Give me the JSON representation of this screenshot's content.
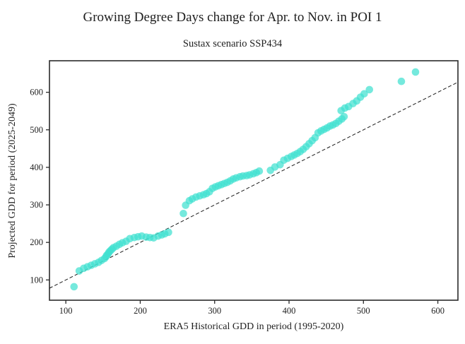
{
  "chart_data": {
    "type": "scatter",
    "title": "Growing Degree Days change for Apr. to Nov. in POI 1",
    "subtitle": "Sustax scenario SSP434",
    "xlabel": "ERA5 Historical GDD in period (1995-2020)",
    "ylabel": "Projected GDD for period (2025-2049)",
    "xlim": [
      78,
      627
    ],
    "ylim": [
      46,
      684
    ],
    "x_ticks": [
      100,
      200,
      300,
      400,
      500,
      600
    ],
    "y_ticks": [
      100,
      200,
      300,
      400,
      500,
      600
    ],
    "grid": false,
    "legend_visible": false,
    "marker": {
      "shape": "circle",
      "color": "#40E0D0",
      "opacity": 0.72,
      "radius": 5.3
    },
    "identity_line": {
      "equation": "y = x",
      "style": "dashed",
      "color": "#1a1a1a",
      "from": [
        78,
        78
      ],
      "to": [
        627,
        627
      ]
    },
    "points": [
      [
        111,
        82
      ],
      [
        118,
        124
      ],
      [
        124,
        131
      ],
      [
        129,
        135
      ],
      [
        134,
        139
      ],
      [
        139,
        143
      ],
      [
        144,
        147
      ],
      [
        148,
        152
      ],
      [
        152,
        157
      ],
      [
        154,
        162
      ],
      [
        155,
        166
      ],
      [
        157,
        170
      ],
      [
        158,
        174
      ],
      [
        160,
        178
      ],
      [
        162,
        182
      ],
      [
        164,
        186
      ],
      [
        168,
        190
      ],
      [
        172,
        195
      ],
      [
        176,
        199
      ],
      [
        181,
        203
      ],
      [
        186,
        210
      ],
      [
        192,
        213
      ],
      [
        197,
        215
      ],
      [
        202,
        217
      ],
      [
        208,
        214
      ],
      [
        213,
        213
      ],
      [
        218,
        212
      ],
      [
        224,
        217
      ],
      [
        229,
        220
      ],
      [
        233,
        223
      ],
      [
        238,
        227
      ],
      [
        258,
        277
      ],
      [
        261,
        299
      ],
      [
        266,
        311
      ],
      [
        270,
        316
      ],
      [
        275,
        321
      ],
      [
        280,
        324
      ],
      [
        285,
        327
      ],
      [
        289,
        330
      ],
      [
        293,
        335
      ],
      [
        297,
        344
      ],
      [
        301,
        348
      ],
      [
        305,
        351
      ],
      [
        309,
        354
      ],
      [
        313,
        357
      ],
      [
        317,
        360
      ],
      [
        321,
        364
      ],
      [
        325,
        369
      ],
      [
        329,
        372
      ],
      [
        334,
        375
      ],
      [
        338,
        377
      ],
      [
        343,
        378
      ],
      [
        347,
        380
      ],
      [
        352,
        383
      ],
      [
        356,
        386
      ],
      [
        360,
        390
      ],
      [
        375,
        392
      ],
      [
        381,
        401
      ],
      [
        388,
        407
      ],
      [
        393,
        419
      ],
      [
        398,
        424
      ],
      [
        403,
        429
      ],
      [
        407,
        433
      ],
      [
        411,
        437
      ],
      [
        415,
        442
      ],
      [
        419,
        448
      ],
      [
        423,
        455
      ],
      [
        427,
        463
      ],
      [
        431,
        471
      ],
      [
        435,
        479
      ],
      [
        439,
        492
      ],
      [
        443,
        497
      ],
      [
        447,
        501
      ],
      [
        451,
        505
      ],
      [
        455,
        510
      ],
      [
        459,
        513
      ],
      [
        463,
        517
      ],
      [
        467,
        523
      ],
      [
        471,
        529
      ],
      [
        474,
        535
      ],
      [
        470,
        551
      ],
      [
        475,
        558
      ],
      [
        480,
        562
      ],
      [
        486,
        570
      ],
      [
        491,
        577
      ],
      [
        496,
        587
      ],
      [
        501,
        596
      ],
      [
        508,
        607
      ],
      [
        551,
        629
      ],
      [
        570,
        654
      ]
    ]
  }
}
